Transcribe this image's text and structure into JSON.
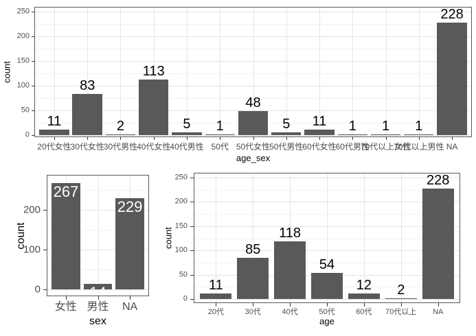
{
  "colors": {
    "background": "#ffffff",
    "bar_fill": "#595959",
    "panel_border": "#585858",
    "grid_major": "#e4e4e4",
    "grid_minor": "#f2f2f2",
    "tick_mark": "#333333",
    "tick_label": "#4d4d4d",
    "axis_title": "#000000",
    "value_label_above": "#000000",
    "value_label_inside": "#ffffff"
  },
  "chart_data": [
    {
      "type": "bar",
      "title": "",
      "xlabel": "age_sex",
      "ylabel": "count",
      "categories": [
        "20代女性",
        "30代女性",
        "30代男性",
        "40代女性",
        "40代男性",
        "50代",
        "50代女性",
        "50代男性",
        "60代女性",
        "60代男性",
        "70代以上女性",
        "70代以上男性",
        "NA"
      ],
      "values": [
        11,
        83,
        2,
        113,
        5,
        1,
        48,
        5,
        11,
        1,
        1,
        1,
        228
      ],
      "yticks": [
        0,
        50,
        100,
        150,
        200,
        250
      ],
      "minor_gridlines": [
        25,
        75,
        125,
        175,
        225
      ],
      "ylim": [
        0,
        260
      ],
      "grid": "major+minor",
      "legend": "none",
      "value_label_position": "above"
    },
    {
      "type": "bar",
      "title": "",
      "xlabel": "sex",
      "ylabel": "count",
      "categories": [
        "女性",
        "男性",
        "NA"
      ],
      "values": [
        267,
        14,
        229
      ],
      "yticks": [
        0,
        100,
        200
      ],
      "minor_gridlines": [
        50,
        150,
        250
      ],
      "ylim": [
        0,
        288
      ],
      "grid": "major+minor",
      "legend": "none",
      "value_label_position": "inside-top"
    },
    {
      "type": "bar",
      "title": "",
      "xlabel": "age",
      "ylabel": "count",
      "categories": [
        "20代",
        "30代",
        "40代",
        "50代",
        "60代",
        "70代以上",
        "NA"
      ],
      "values": [
        11,
        85,
        118,
        54,
        12,
        2,
        228
      ],
      "yticks": [
        0,
        50,
        100,
        150,
        200,
        250
      ],
      "minor_gridlines": [
        25,
        75,
        125,
        175,
        225
      ],
      "ylim": [
        0,
        260
      ],
      "grid": "major+minor",
      "legend": "none",
      "value_label_position": "above"
    }
  ]
}
